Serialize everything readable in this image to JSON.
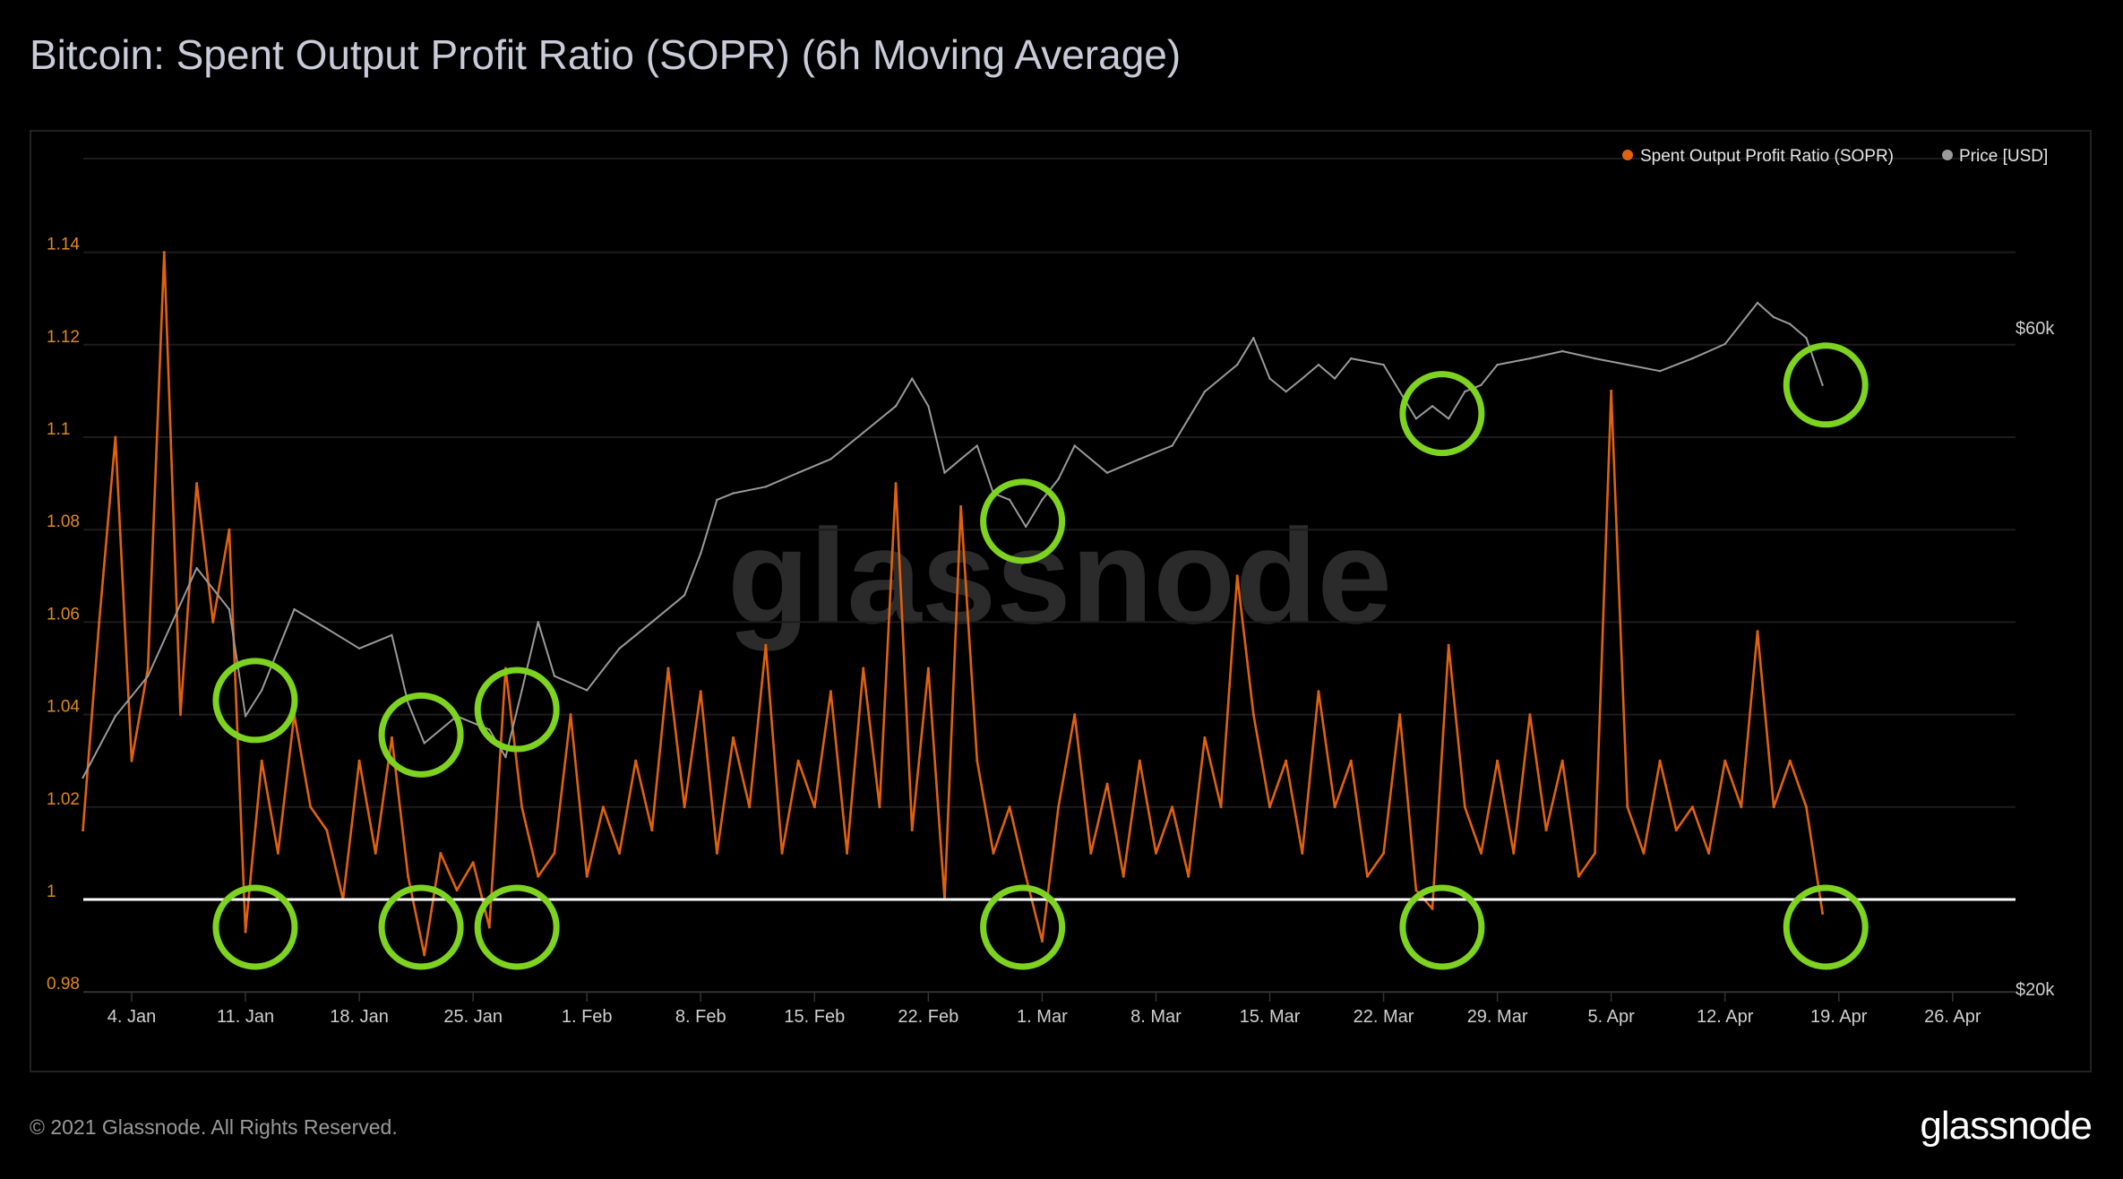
{
  "header": {
    "title": "Bitcoin: Spent Output Profit Ratio (SOPR) (6h Moving Average)"
  },
  "footer": {
    "copyright": "© 2021 Glassnode. All Rights Reserved.",
    "logo": "glassnode"
  },
  "watermark": "glassnode",
  "colors": {
    "sopr": "#e0620f",
    "price": "#9a9a9a",
    "annotation": "#7ed321",
    "baseline": "#ffffff",
    "left_axis": "#e08a1e"
  },
  "chart_data": {
    "type": "line",
    "title": "Bitcoin: Spent Output Profit Ratio (SOPR) (6h Moving Average)",
    "legend": {
      "placement": "top-right",
      "entries": [
        "Spent Output Profit Ratio (SOPR)",
        "Price [USD]"
      ]
    },
    "x_unit": "day of year 2021 (1 = 1 Jan)",
    "x_ticks": [
      {
        "day": 4,
        "label": "4. Jan"
      },
      {
        "day": 11,
        "label": "11. Jan"
      },
      {
        "day": 18,
        "label": "18. Jan"
      },
      {
        "day": 25,
        "label": "25. Jan"
      },
      {
        "day": 32,
        "label": "1. Feb"
      },
      {
        "day": 39,
        "label": "8. Feb"
      },
      {
        "day": 46,
        "label": "15. Feb"
      },
      {
        "day": 53,
        "label": "22. Feb"
      },
      {
        "day": 60,
        "label": "1. Mar"
      },
      {
        "day": 67,
        "label": "8. Mar"
      },
      {
        "day": 74,
        "label": "15. Mar"
      },
      {
        "day": 81,
        "label": "22. Mar"
      },
      {
        "day": 88,
        "label": "29. Mar"
      },
      {
        "day": 95,
        "label": "5. Apr"
      },
      {
        "day": 102,
        "label": "12. Apr"
      },
      {
        "day": 109,
        "label": "19. Apr"
      },
      {
        "day": 116,
        "label": "26. Apr"
      }
    ],
    "xlim": [
      1,
      121
    ],
    "y_left": {
      "label": "SOPR",
      "range": [
        0.98,
        1.16
      ],
      "ticks": [
        {
          "v": 0.98,
          "label": "0.98"
        },
        {
          "v": 1.0,
          "label": "1"
        },
        {
          "v": 1.02,
          "label": "1.02"
        },
        {
          "v": 1.04,
          "label": "1.04"
        },
        {
          "v": 1.06,
          "label": "1.06"
        },
        {
          "v": 1.08,
          "label": "1.08"
        },
        {
          "v": 1.1,
          "label": "1.1"
        },
        {
          "v": 1.12,
          "label": "1.12"
        },
        {
          "v": 1.14,
          "label": "1.14"
        }
      ],
      "reference_line": 1.0
    },
    "y_right": {
      "label": "Price [USD]",
      "scale": "log",
      "range": [
        20000,
        60000
      ],
      "ticks": [
        {
          "v": 20000,
          "label": "$20k"
        },
        {
          "v": 60000,
          "label": "$60k"
        }
      ]
    },
    "grid": true,
    "series": [
      {
        "name": "Spent Output Profit Ratio (SOPR)",
        "start_day": 1,
        "values": [
          1.015,
          1.06,
          1.1,
          1.03,
          1.05,
          1.14,
          1.04,
          1.09,
          1.06,
          1.08,
          0.993,
          1.03,
          1.01,
          1.04,
          1.02,
          1.015,
          1.0,
          1.03,
          1.01,
          1.035,
          1.005,
          0.988,
          1.01,
          1.002,
          1.008,
          0.994,
          1.05,
          1.02,
          1.005,
          1.01,
          1.04,
          1.005,
          1.02,
          1.01,
          1.03,
          1.015,
          1.05,
          1.02,
          1.045,
          1.01,
          1.035,
          1.02,
          1.055,
          1.01,
          1.03,
          1.02,
          1.045,
          1.01,
          1.05,
          1.02,
          1.09,
          1.015,
          1.05,
          1.0,
          1.085,
          1.03,
          1.01,
          1.02,
          1.005,
          0.991,
          1.02,
          1.04,
          1.01,
          1.025,
          1.005,
          1.03,
          1.01,
          1.02,
          1.005,
          1.035,
          1.02,
          1.07,
          1.04,
          1.02,
          1.03,
          1.01,
          1.045,
          1.02,
          1.03,
          1.005,
          1.01,
          1.04,
          1.002,
          0.998,
          1.055,
          1.02,
          1.01,
          1.03,
          1.01,
          1.04,
          1.015,
          1.03,
          1.005,
          1.01,
          1.11,
          1.02,
          1.01,
          1.03,
          1.015,
          1.02,
          1.01,
          1.03,
          1.02,
          1.058,
          1.02,
          1.03,
          1.02,
          0.997
        ]
      },
      {
        "name": "Price [USD]",
        "points": [
          [
            1,
            28800
          ],
          [
            3,
            31900
          ],
          [
            5,
            34100
          ],
          [
            8,
            40800
          ],
          [
            10,
            38100
          ],
          [
            11,
            31900
          ],
          [
            12,
            33300
          ],
          [
            14,
            38100
          ],
          [
            16,
            36900
          ],
          [
            18,
            35700
          ],
          [
            20,
            36500
          ],
          [
            21,
            32600
          ],
          [
            22,
            30500
          ],
          [
            24,
            31900
          ],
          [
            26,
            31200
          ],
          [
            27,
            29800
          ],
          [
            28,
            33300
          ],
          [
            29,
            37300
          ],
          [
            30,
            34100
          ],
          [
            32,
            33300
          ],
          [
            34,
            35700
          ],
          [
            36,
            37300
          ],
          [
            38,
            39000
          ],
          [
            39,
            41800
          ],
          [
            40,
            45700
          ],
          [
            41,
            46200
          ],
          [
            43,
            46700
          ],
          [
            45,
            47800
          ],
          [
            47,
            48900
          ],
          [
            49,
            51100
          ],
          [
            51,
            53400
          ],
          [
            52,
            55900
          ],
          [
            53,
            53400
          ],
          [
            54,
            47800
          ],
          [
            55,
            48900
          ],
          [
            56,
            50000
          ],
          [
            57,
            46200
          ],
          [
            58,
            45700
          ],
          [
            59,
            43700
          ],
          [
            60,
            45700
          ],
          [
            61,
            47300
          ],
          [
            62,
            50000
          ],
          [
            64,
            47800
          ],
          [
            66,
            48900
          ],
          [
            68,
            50000
          ],
          [
            69,
            52300
          ],
          [
            70,
            54700
          ],
          [
            72,
            57200
          ],
          [
            73,
            59800
          ],
          [
            74,
            55900
          ],
          [
            75,
            54700
          ],
          [
            76,
            55900
          ],
          [
            77,
            57200
          ],
          [
            78,
            55900
          ],
          [
            79,
            57800
          ],
          [
            81,
            57200
          ],
          [
            82,
            54700
          ],
          [
            83,
            52300
          ],
          [
            84,
            53400
          ],
          [
            85,
            52300
          ],
          [
            86,
            54700
          ],
          [
            87,
            55300
          ],
          [
            88,
            57200
          ],
          [
            90,
            57800
          ],
          [
            92,
            58500
          ],
          [
            94,
            57800
          ],
          [
            96,
            57200
          ],
          [
            98,
            56600
          ],
          [
            100,
            57800
          ],
          [
            102,
            59200
          ],
          [
            104,
            63400
          ],
          [
            105,
            61900
          ],
          [
            106,
            61200
          ],
          [
            107,
            59800
          ],
          [
            108,
            55300
          ]
        ]
      }
    ],
    "annotations": [
      {
        "type": "circle",
        "series": "price",
        "day": 11.6
      },
      {
        "type": "circle",
        "series": "price",
        "day": 21.8
      },
      {
        "type": "circle",
        "series": "price",
        "day": 27.7
      },
      {
        "type": "circle",
        "series": "price",
        "day": 58.8
      },
      {
        "type": "circle",
        "series": "price",
        "day": 84.6
      },
      {
        "type": "circle",
        "series": "price",
        "day": 108.2
      },
      {
        "type": "circle",
        "series": "sopr",
        "day": 11.6,
        "value": 0.994
      },
      {
        "type": "circle",
        "series": "sopr",
        "day": 21.8,
        "value": 0.994
      },
      {
        "type": "circle",
        "series": "sopr",
        "day": 27.7,
        "value": 0.994
      },
      {
        "type": "circle",
        "series": "sopr",
        "day": 58.8,
        "value": 0.994
      },
      {
        "type": "circle",
        "series": "sopr",
        "day": 84.6,
        "value": 0.994
      },
      {
        "type": "circle",
        "series": "sopr",
        "day": 108.2,
        "value": 0.994
      }
    ]
  }
}
